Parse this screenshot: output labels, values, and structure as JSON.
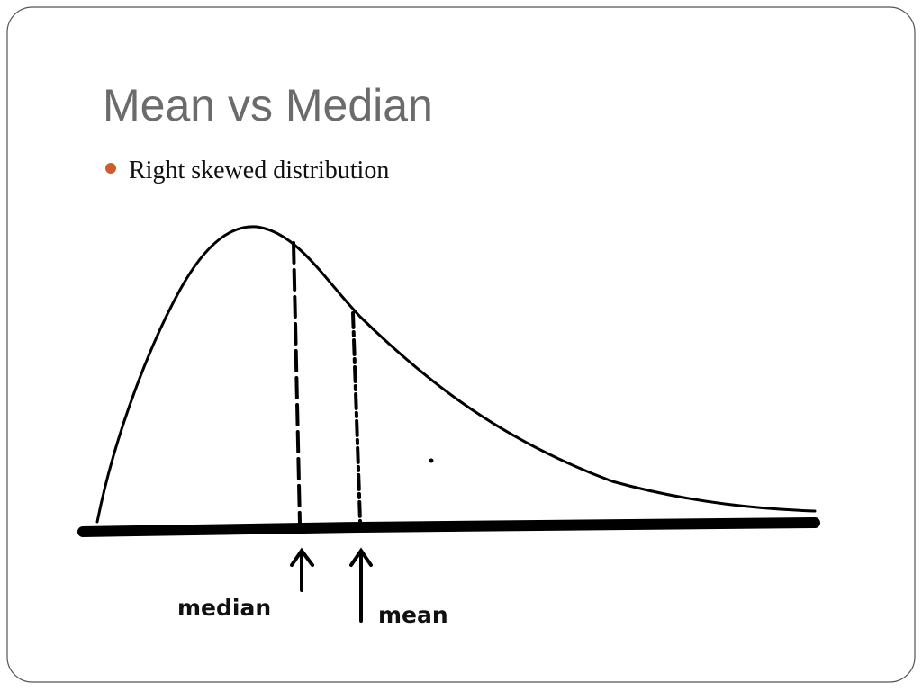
{
  "title": "Mean vs Median",
  "bullets": [
    "Right skewed distribution"
  ],
  "diagram": {
    "markers": [
      {
        "label": "median"
      },
      {
        "label": "mean"
      }
    ]
  }
}
